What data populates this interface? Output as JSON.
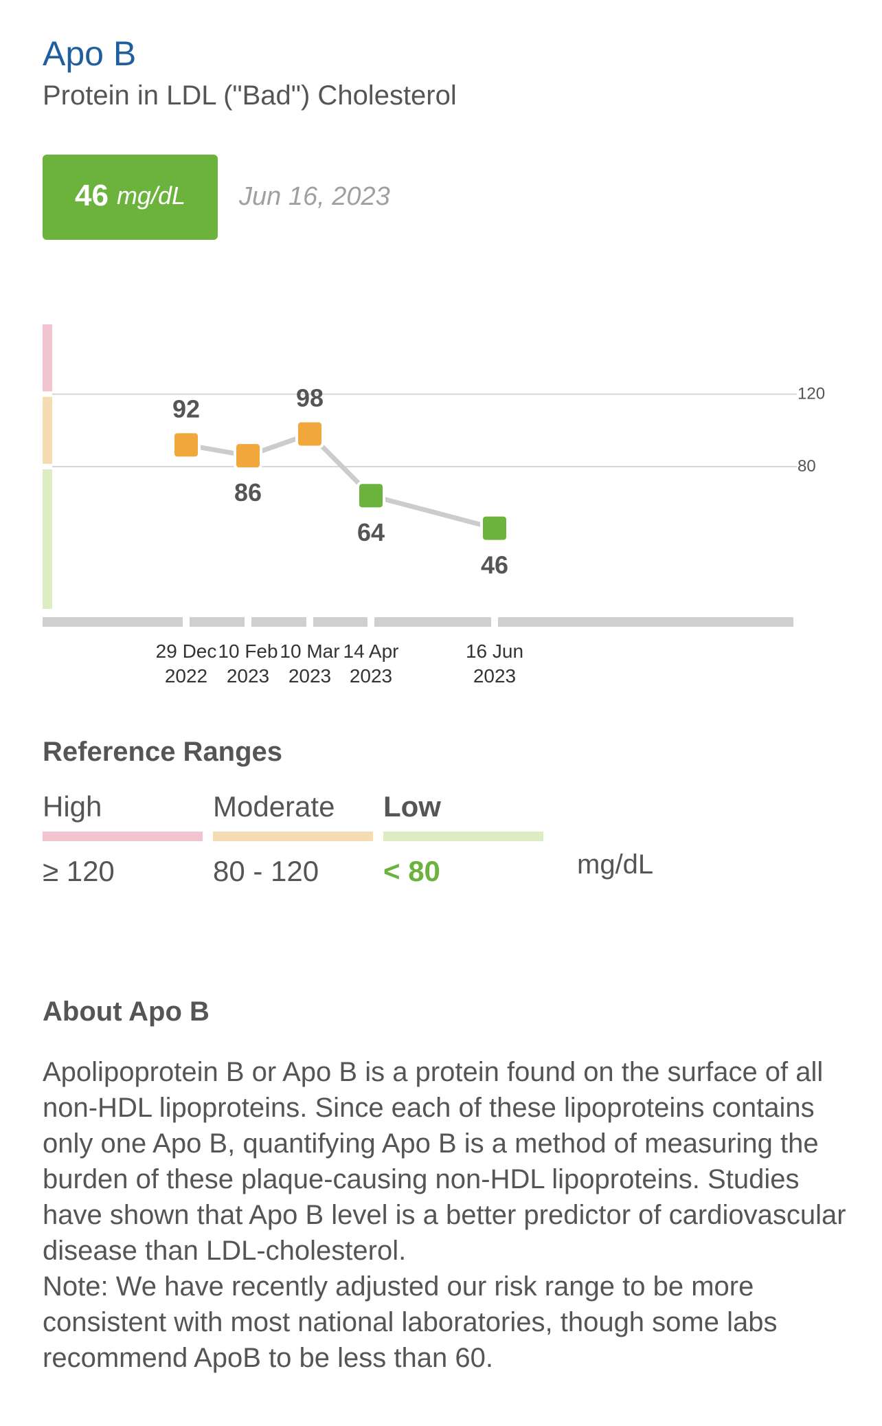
{
  "header": {
    "title": "Apo B",
    "subtitle": "Protein in LDL (\"Bad\") Cholesterol"
  },
  "latest": {
    "value": "46",
    "unit": "mg/dL",
    "date": "Jun 16, 2023",
    "status_color": "#6bb33d"
  },
  "chart_data": {
    "type": "line",
    "x": [
      "29 Dec 2022",
      "10 Feb 2023",
      "10 Mar 2023",
      "14 Apr 2023",
      "16 Jun 2023"
    ],
    "x_labels": [
      [
        "29 Dec",
        "2022"
      ],
      [
        "10 Feb",
        "2023"
      ],
      [
        "10 Mar",
        "2023"
      ],
      [
        "14 Apr",
        "2023"
      ],
      [
        "16 Jun",
        "2023"
      ]
    ],
    "series": [
      {
        "values": [
          92,
          86,
          98,
          64,
          46
        ]
      }
    ],
    "point_colors": [
      "#f0a73c",
      "#f0a73c",
      "#f0a73c",
      "#6bb33d",
      "#6bb33d"
    ],
    "threshold_lines": [
      120,
      80
    ],
    "y_bands": [
      {
        "from": 120,
        "to": 160,
        "color": "#f2c4cf"
      },
      {
        "from": 80,
        "to": 120,
        "color": "#f6dcb3"
      },
      {
        "from": 0,
        "to": 80,
        "color": "#dcedc4"
      }
    ],
    "ylim": [
      0,
      160
    ],
    "grid": false
  },
  "reference": {
    "title": "Reference Ranges",
    "ranges": [
      {
        "label": "High",
        "value": "≥ 120",
        "color": "#f2c4cf",
        "active": false
      },
      {
        "label": "Moderate",
        "value": "80 - 120",
        "color": "#f6dcb3",
        "active": false
      },
      {
        "label": "Low",
        "value": "< 80",
        "color": "#dcedc4",
        "active": true
      }
    ],
    "unit": "mg/dL"
  },
  "about": {
    "title": "About Apo B",
    "paragraph": "Apolipoprotein B or Apo B is a protein found on the surface of all non-HDL lipoproteins. Since each of these lipoproteins contains only one Apo B, quantifying Apo B is a method of measuring the burden of these plaque-causing non-HDL lipoproteins. Studies have shown that Apo B level is a better predictor of cardiovascular disease than LDL-cholesterol.",
    "note": "Note:  We have recently adjusted our risk range to be more consistent with most national laboratories, though some labs recommend ApoB to be less than 60."
  }
}
